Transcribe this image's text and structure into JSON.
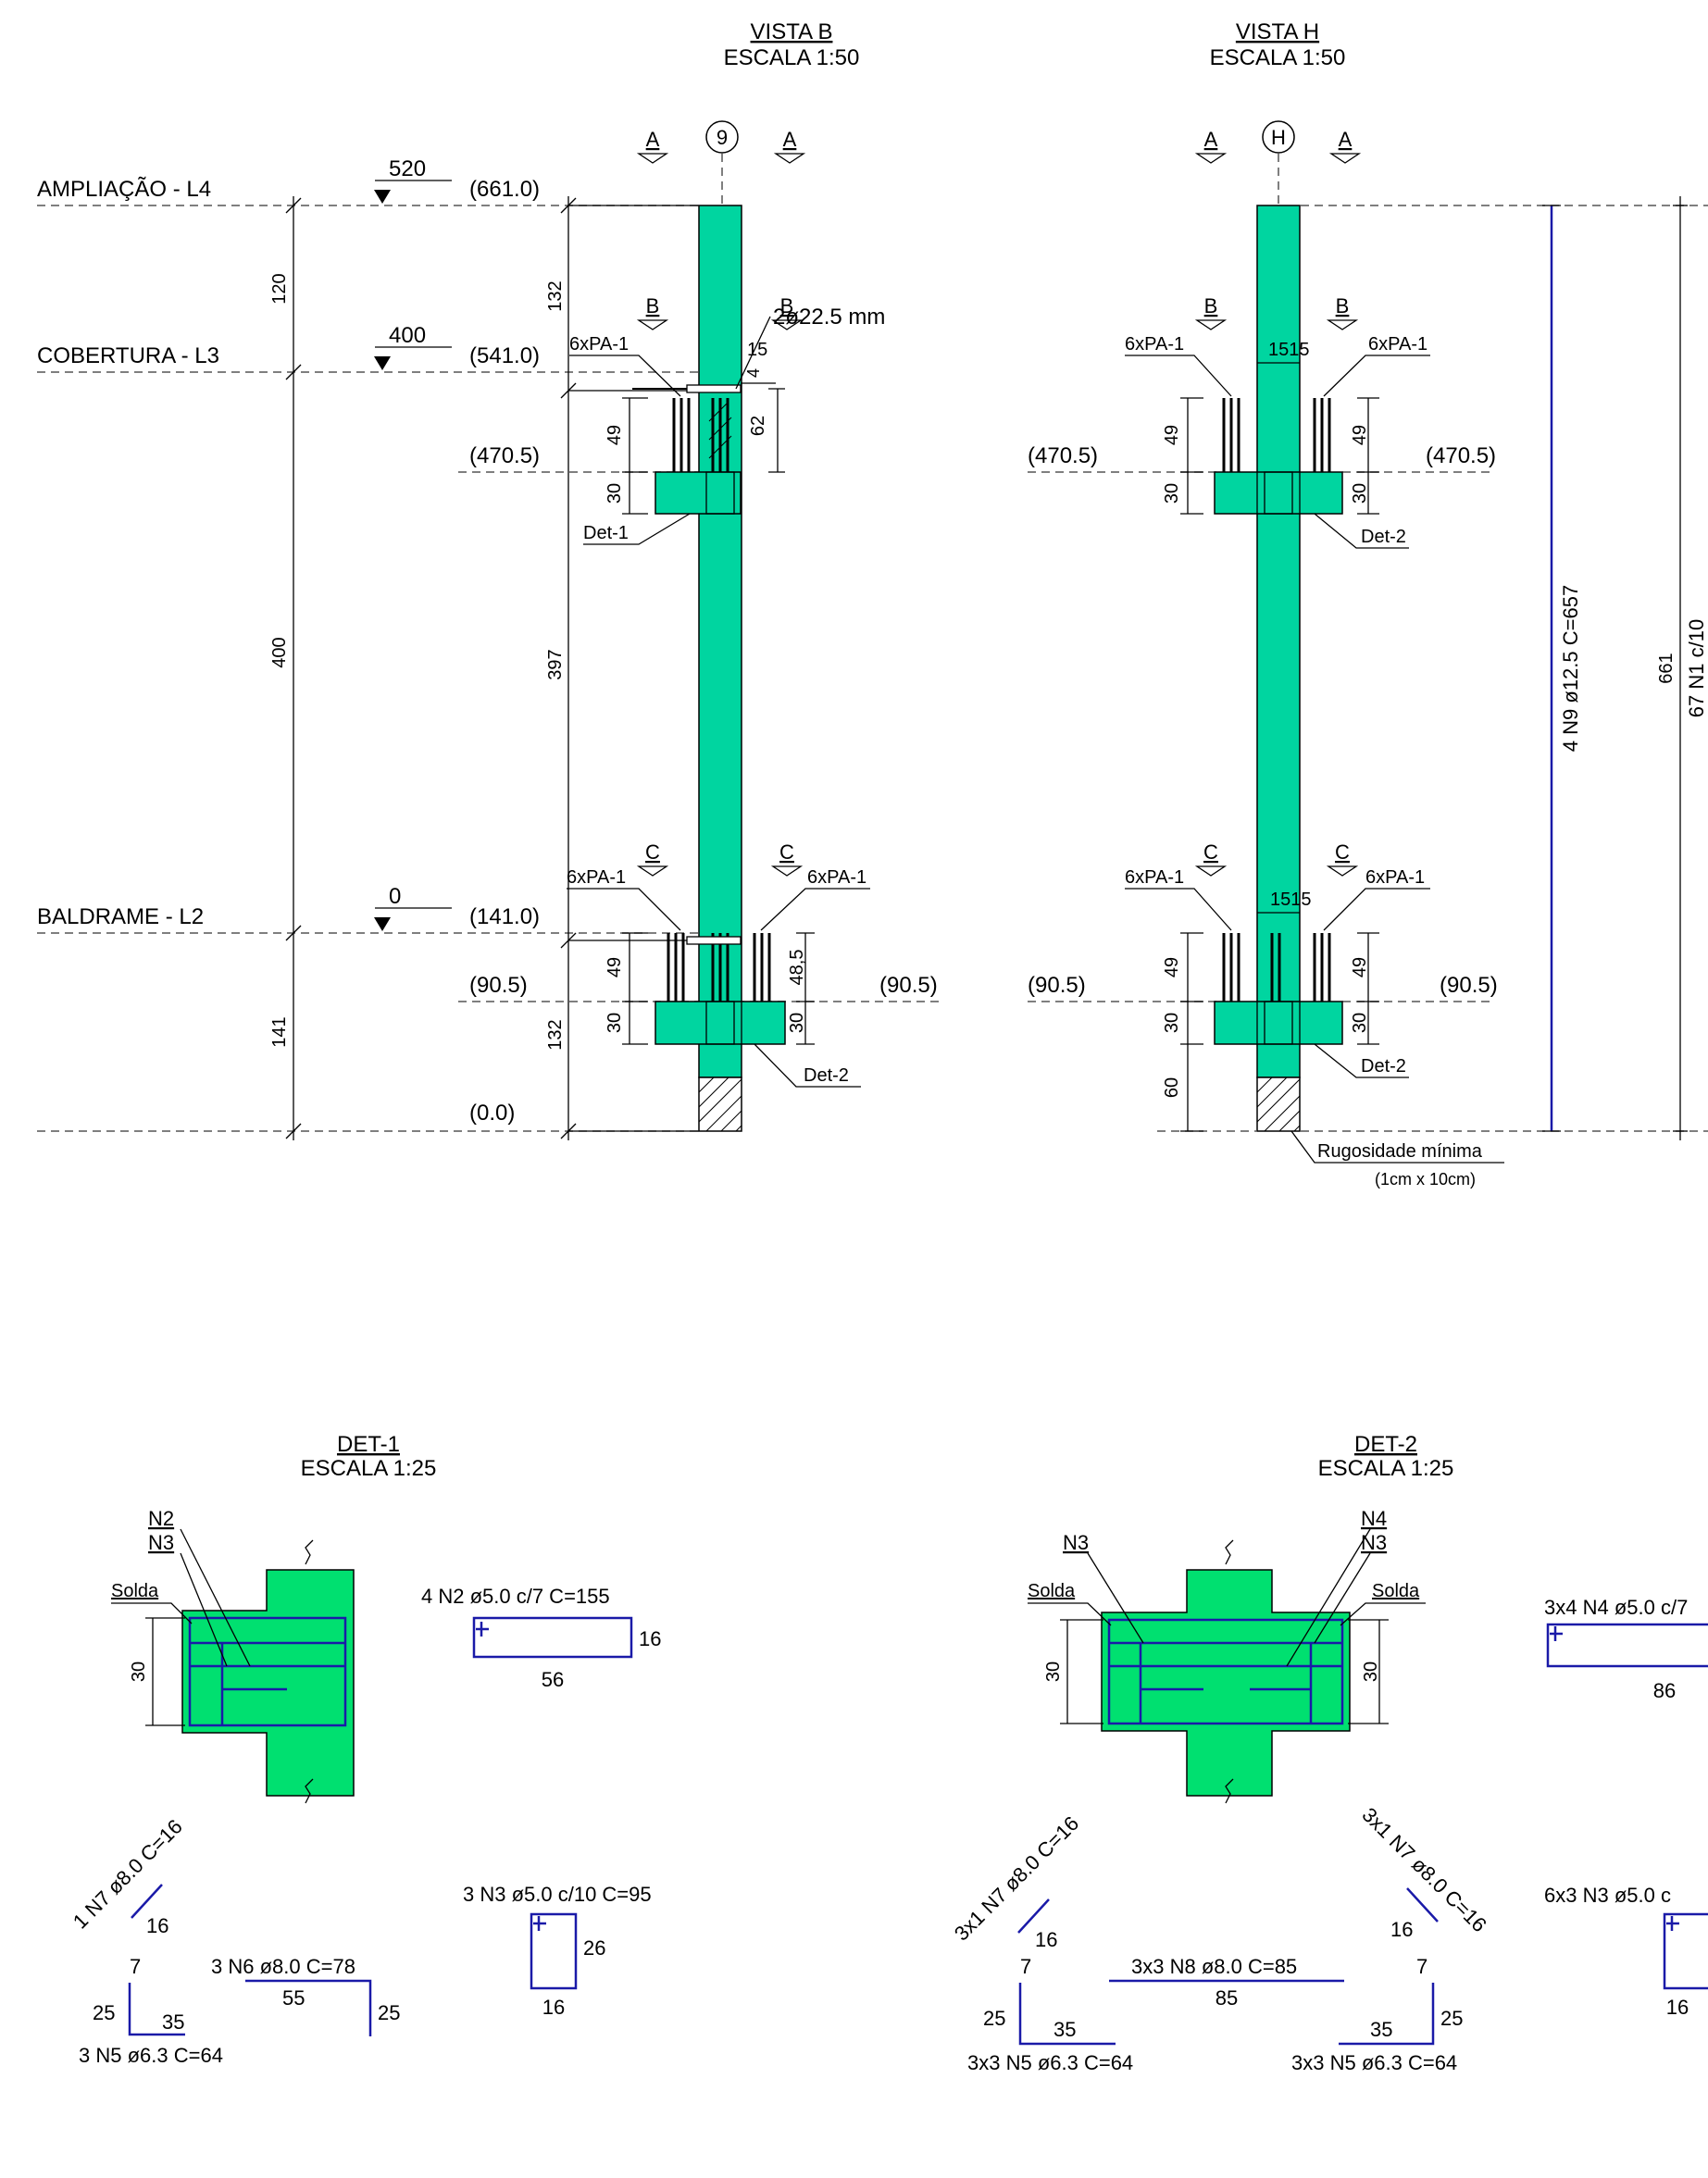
{
  "colors": {
    "column": "#00d5a0",
    "detail_fill": "#00e070",
    "rebar_blue": "#1a1aa8"
  },
  "view_b": {
    "title": "VISTA B",
    "scale": "ESCALA 1:50",
    "axis": "9"
  },
  "view_h": {
    "title": "VISTA H",
    "scale": "ESCALA 1:50",
    "axis": "H"
  },
  "section_a": "A",
  "section_b": "B",
  "section_c": "C",
  "levels": [
    {
      "name": "AMPLIAÇÃO - L4",
      "mark": "520",
      "elev": "(661.0)"
    },
    {
      "name": "COBERTURA - L3",
      "mark": "400",
      "elev": "(541.0)"
    },
    {
      "name": "BALDRAME - L2",
      "mark": "0",
      "elev": "(141.0)"
    }
  ],
  "elev_4705": "(470.5)",
  "elev_905": "(90.5)",
  "elev_00": "(0.0)",
  "left_dims": {
    "d120": "120",
    "d400": "400",
    "d141": "141"
  },
  "col_dims": {
    "d132a": "132",
    "d397": "397",
    "d132b": "132"
  },
  "dims_small": {
    "d49": "49",
    "d30": "30",
    "d62": "62",
    "d48_5": "48,5",
    "d15": "15",
    "d4": "4",
    "d1515": "1515",
    "d60": "60"
  },
  "callouts": {
    "pa1": "6xPA-1",
    "det1": "Det-1",
    "det2": "Det-2",
    "bolt": "2ø22.5 mm",
    "rugos": "Rugosidade mínima",
    "rugos_size": "(1cm x 10cm)"
  },
  "vertical_labels": {
    "n9": "4 N9 ø12.5 C=657",
    "d661": "661",
    "n1": "67 N1 c/10"
  },
  "det1": {
    "title": "DET-1",
    "scale": "ESCALA 1:25",
    "n2": "N2",
    "n3": "N3",
    "solda": "Solda",
    "h30": "30",
    "n2_spec": "4 N2 ø5.0 c/7 C=155",
    "n2_w": "56",
    "n2_h": "16",
    "n3_spec": "3 N3 ø5.0 c/10 C=95",
    "n3_w": "16",
    "n3_h": "26",
    "n7_spec": "1 N7 ø8.0 C=16",
    "n7_len": "16",
    "n5_spec": "3 N5 ø6.3 C=64",
    "n5_7": "7",
    "n5_25": "25",
    "n5_35": "35",
    "n6_spec": "3 N6 ø8.0 C=78",
    "n6_55": "55",
    "n6_25": "25"
  },
  "det2": {
    "title": "DET-2",
    "scale": "ESCALA 1:25",
    "n3": "N3",
    "n4": "N4",
    "solda": "Solda",
    "h30": "30",
    "n4_spec": "3x4 N4 ø5.0 c/7",
    "n4_w": "86",
    "n3_spec": "6x3 N3 ø5.0 c",
    "n3_w": "16",
    "n7_spec": "3x1 N7 ø8.0 C=16",
    "n7_len": "16",
    "n8_spec": "3x3 N8 ø8.0 C=85",
    "n8_len": "85",
    "n5_spec": "3x3 N5 ø6.3 C=64",
    "n5_7": "7",
    "n5_25": "25",
    "n5_35": "35"
  }
}
